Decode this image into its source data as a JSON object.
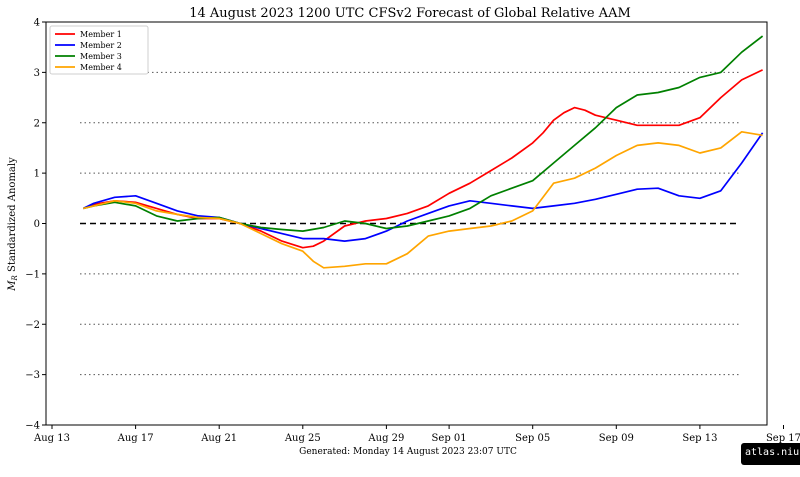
{
  "title": "14  August  2023 1200 UTC   CFSv2 Forecast of Global Relative AAM",
  "footer": "Generated: Monday  14  August  2023  23:07 UTC",
  "watermark": "atlas.niu.edu",
  "chart_data": {
    "type": "line",
    "title": "14  August  2023 1200 UTC   CFSv2 Forecast of Global Relative AAM",
    "xlabel": "",
    "ylabel": "M_R Standardized Anomaly",
    "xlim": [
      0,
      34.5
    ],
    "ylim": [
      -4,
      4
    ],
    "xticks": [
      {
        "x": 0,
        "label": "Aug 13"
      },
      {
        "x": 4,
        "label": "Aug 17"
      },
      {
        "x": 8,
        "label": "Aug 21"
      },
      {
        "x": 12,
        "label": "Aug 25"
      },
      {
        "x": 16,
        "label": "Aug 29"
      },
      {
        "x": 19,
        "label": "Sep 01"
      },
      {
        "x": 23,
        "label": "Sep 05"
      },
      {
        "x": 27,
        "label": "Sep 09"
      },
      {
        "x": 31,
        "label": "Sep 13"
      },
      {
        "x": 35,
        "label": "Sep 17"
      }
    ],
    "yticks": [
      -4,
      -3,
      -2,
      -1,
      0,
      1,
      2,
      3,
      4
    ],
    "ytick_labels": [
      "−4",
      "−3",
      "−2",
      "−1",
      "0",
      "1",
      "2",
      "3",
      "4"
    ],
    "grid": "dotted horizontal at ±1, ±2, ±3",
    "zero_line": "dashed black at 0",
    "legend_position": "top-left",
    "series": [
      {
        "name": "Member 1",
        "color": "#ff0000",
        "x": [
          1.5,
          2,
          3,
          4,
          5,
          6,
          7,
          8,
          9,
          10,
          11,
          12,
          12.5,
          13,
          14,
          15,
          16,
          17,
          18,
          19,
          20,
          21,
          22,
          23,
          23.5,
          24,
          24.5,
          25,
          25.5,
          26,
          26.5,
          27,
          28,
          29,
          30,
          31,
          32,
          33,
          34
        ],
        "y": [
          0.3,
          0.38,
          0.45,
          0.42,
          0.3,
          0.18,
          0.1,
          0.1,
          0.0,
          -0.15,
          -0.35,
          -0.48,
          -0.45,
          -0.35,
          -0.05,
          0.05,
          0.1,
          0.2,
          0.35,
          0.6,
          0.8,
          1.05,
          1.3,
          1.6,
          1.8,
          2.05,
          2.2,
          2.3,
          2.25,
          2.15,
          2.1,
          2.05,
          1.95,
          1.95,
          1.95,
          2.1,
          2.5,
          2.85,
          3.05
        ]
      },
      {
        "name": "Member 2",
        "color": "#0000ff",
        "x": [
          1.5,
          2,
          3,
          4,
          5,
          6,
          7,
          8,
          9,
          10,
          11,
          12,
          13,
          14,
          15,
          16,
          17,
          18,
          19,
          20,
          21,
          22,
          23,
          24,
          25,
          26,
          27,
          28,
          29,
          30,
          31,
          32,
          33,
          34
        ],
        "y": [
          0.3,
          0.4,
          0.52,
          0.55,
          0.4,
          0.25,
          0.15,
          0.12,
          0.0,
          -0.1,
          -0.2,
          -0.3,
          -0.3,
          -0.35,
          -0.3,
          -0.15,
          0.05,
          0.2,
          0.35,
          0.45,
          0.4,
          0.35,
          0.3,
          0.35,
          0.4,
          0.48,
          0.58,
          0.68,
          0.7,
          0.55,
          0.5,
          0.65,
          1.2,
          1.8
        ]
      },
      {
        "name": "Member 3",
        "color": "#008000",
        "x": [
          1.5,
          2,
          3,
          4,
          5,
          6,
          7,
          8,
          9,
          10,
          11,
          12,
          13,
          14,
          15,
          16,
          17,
          18,
          19,
          20,
          21,
          22,
          23,
          24,
          25,
          26,
          27,
          28,
          29,
          30,
          31,
          32,
          33,
          34
        ],
        "y": [
          0.3,
          0.35,
          0.42,
          0.35,
          0.15,
          0.05,
          0.1,
          0.12,
          0.0,
          -0.08,
          -0.12,
          -0.15,
          -0.08,
          0.05,
          0.0,
          -0.1,
          -0.05,
          0.05,
          0.15,
          0.3,
          0.55,
          0.7,
          0.85,
          1.2,
          1.55,
          1.9,
          2.3,
          2.55,
          2.6,
          2.7,
          2.9,
          3.0,
          3.4,
          3.72
        ]
      },
      {
        "name": "Member 4",
        "color": "#ffa500",
        "x": [
          1.5,
          2,
          3,
          4,
          5,
          6,
          7,
          8,
          9,
          10,
          11,
          12,
          12.5,
          13,
          14,
          15,
          16,
          17,
          18,
          19,
          20,
          21,
          22,
          23,
          24,
          25,
          26,
          27,
          28,
          29,
          30,
          31,
          32,
          33,
          34
        ],
        "y": [
          0.3,
          0.35,
          0.45,
          0.4,
          0.25,
          0.18,
          0.12,
          0.1,
          0.0,
          -0.2,
          -0.4,
          -0.55,
          -0.75,
          -0.88,
          -0.85,
          -0.8,
          -0.8,
          -0.6,
          -0.25,
          -0.15,
          -0.1,
          -0.05,
          0.05,
          0.25,
          0.8,
          0.9,
          1.1,
          1.35,
          1.55,
          1.6,
          1.55,
          1.4,
          1.5,
          1.82,
          1.75
        ]
      }
    ]
  }
}
